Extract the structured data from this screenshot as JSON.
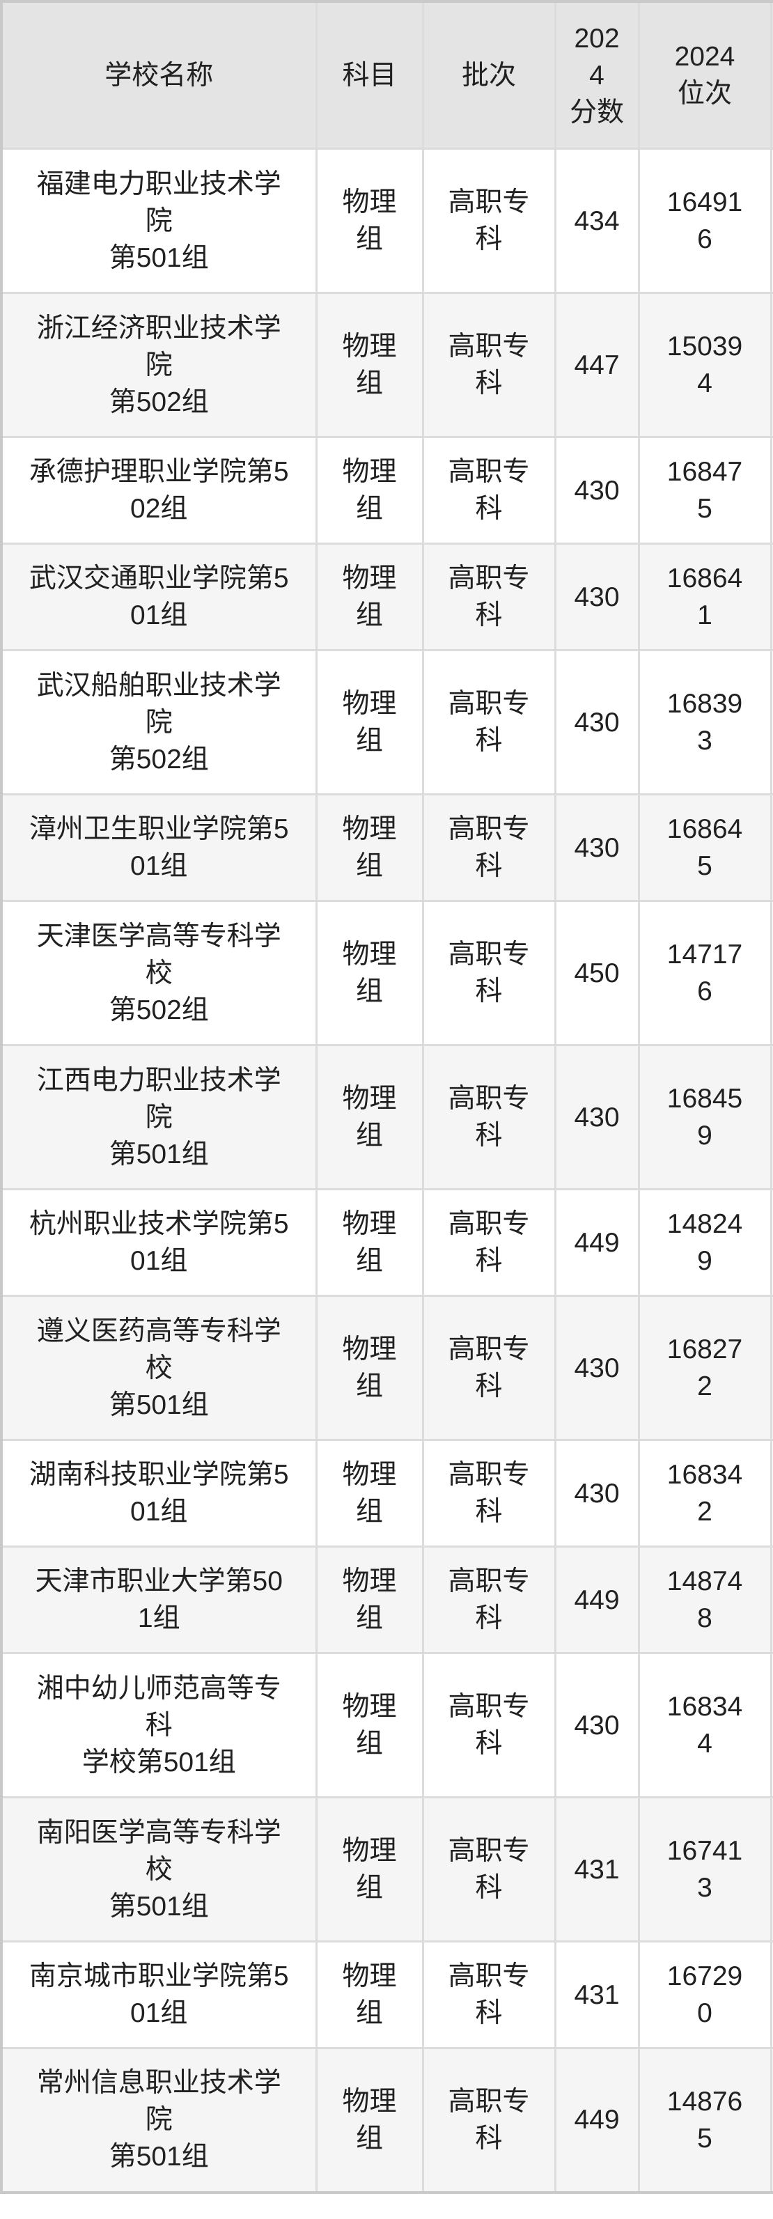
{
  "colors": {
    "header_bg": "#e4e4e4",
    "row_bg": "#ffffff",
    "row_alt_bg": "#f5f5f5",
    "border": "#dcdcdc",
    "outer_border": "#c9c9c9",
    "text": "#212121"
  },
  "table": {
    "columns": [
      {
        "key": "school",
        "label": "学校名称",
        "display": "学校名称"
      },
      {
        "key": "subject",
        "label": "科目",
        "display": "科目"
      },
      {
        "key": "batch",
        "label": "批次",
        "display": "批次"
      },
      {
        "key": "score2024",
        "label": "2024分数",
        "display": "202\n4\n分数"
      },
      {
        "key": "rank2024",
        "label": "2024位次",
        "display": "2024\n位次"
      }
    ],
    "rows": [
      {
        "school": "福建电力职业技术学院第501组",
        "school_display": "福建电力职业技术学\n院\n第501组",
        "subject": "物理组",
        "subject_display": "物理\n组",
        "batch": "高职专科",
        "batch_display": "高职专\n科",
        "score": "434",
        "rank": "164916",
        "rank_display": "16491\n6"
      },
      {
        "school": "浙江经济职业技术学院第502组",
        "school_display": "浙江经济职业技术学\n院\n第502组",
        "subject": "物理组",
        "subject_display": "物理\n组",
        "batch": "高职专科",
        "batch_display": "高职专\n科",
        "score": "447",
        "rank": "150394",
        "rank_display": "15039\n4"
      },
      {
        "school": "承德护理职业学院第502组",
        "school_display": "承德护理职业学院第5\n02组",
        "subject": "物理组",
        "subject_display": "物理\n组",
        "batch": "高职专科",
        "batch_display": "高职专\n科",
        "score": "430",
        "rank": "168475",
        "rank_display": "16847\n5"
      },
      {
        "school": "武汉交通职业学院第501组",
        "school_display": "武汉交通职业学院第5\n01组",
        "subject": "物理组",
        "subject_display": "物理\n组",
        "batch": "高职专科",
        "batch_display": "高职专\n科",
        "score": "430",
        "rank": "168641",
        "rank_display": "16864\n1"
      },
      {
        "school": "武汉船舶职业技术学院第502组",
        "school_display": "武汉船舶职业技术学\n院\n第502组",
        "subject": "物理组",
        "subject_display": "物理\n组",
        "batch": "高职专科",
        "batch_display": "高职专\n科",
        "score": "430",
        "rank": "168393",
        "rank_display": "16839\n3"
      },
      {
        "school": "漳州卫生职业学院第501组",
        "school_display": "漳州卫生职业学院第5\n01组",
        "subject": "物理组",
        "subject_display": "物理\n组",
        "batch": "高职专科",
        "batch_display": "高职专\n科",
        "score": "430",
        "rank": "168645",
        "rank_display": "16864\n5"
      },
      {
        "school": "天津医学高等专科学校第502组",
        "school_display": "天津医学高等专科学\n校\n第502组",
        "subject": "物理组",
        "subject_display": "物理\n组",
        "batch": "高职专科",
        "batch_display": "高职专\n科",
        "score": "450",
        "rank": "147176",
        "rank_display": "14717\n6"
      },
      {
        "school": "江西电力职业技术学院第501组",
        "school_display": "江西电力职业技术学\n院\n第501组",
        "subject": "物理组",
        "subject_display": "物理\n组",
        "batch": "高职专科",
        "batch_display": "高职专\n科",
        "score": "430",
        "rank": "168459",
        "rank_display": "16845\n9"
      },
      {
        "school": "杭州职业技术学院第501组",
        "school_display": "杭州职业技术学院第5\n01组",
        "subject": "物理组",
        "subject_display": "物理\n组",
        "batch": "高职专科",
        "batch_display": "高职专\n科",
        "score": "449",
        "rank": "148249",
        "rank_display": "14824\n9"
      },
      {
        "school": "遵义医药高等专科学校第501组",
        "school_display": "遵义医药高等专科学\n校\n第501组",
        "subject": "物理组",
        "subject_display": "物理\n组",
        "batch": "高职专科",
        "batch_display": "高职专\n科",
        "score": "430",
        "rank": "168272",
        "rank_display": "16827\n2"
      },
      {
        "school": "湖南科技职业学院第501组",
        "school_display": "湖南科技职业学院第5\n01组",
        "subject": "物理组",
        "subject_display": "物理\n组",
        "batch": "高职专科",
        "batch_display": "高职专\n科",
        "score": "430",
        "rank": "168342",
        "rank_display": "16834\n2"
      },
      {
        "school": "天津市职业大学第501组",
        "school_display": "天津市职业大学第50\n1组",
        "subject": "物理组",
        "subject_display": "物理\n组",
        "batch": "高职专科",
        "batch_display": "高职专\n科",
        "score": "449",
        "rank": "148748",
        "rank_display": "14874\n8"
      },
      {
        "school": "湘中幼儿师范高等专科学校第501组",
        "school_display": "湘中幼儿师范高等专\n科\n学校第501组",
        "subject": "物理组",
        "subject_display": "物理\n组",
        "batch": "高职专科",
        "batch_display": "高职专\n科",
        "score": "430",
        "rank": "168344",
        "rank_display": "16834\n4"
      },
      {
        "school": "南阳医学高等专科学校第501组",
        "school_display": "南阳医学高等专科学\n校\n第501组",
        "subject": "物理组",
        "subject_display": "物理\n组",
        "batch": "高职专科",
        "batch_display": "高职专\n科",
        "score": "431",
        "rank": "167413",
        "rank_display": "16741\n3"
      },
      {
        "school": "南京城市职业学院第501组",
        "school_display": "南京城市职业学院第5\n01组",
        "subject": "物理组",
        "subject_display": "物理\n组",
        "batch": "高职专科",
        "batch_display": "高职专\n科",
        "score": "431",
        "rank": "167290",
        "rank_display": "16729\n0"
      },
      {
        "school": "常州信息职业技术学院第501组",
        "school_display": "常州信息职业技术学\n院\n第501组",
        "subject": "物理组",
        "subject_display": "物理\n组",
        "batch": "高职专科",
        "batch_display": "高职专\n科",
        "score": "449",
        "rank": "148765",
        "rank_display": "14876\n5"
      }
    ]
  }
}
